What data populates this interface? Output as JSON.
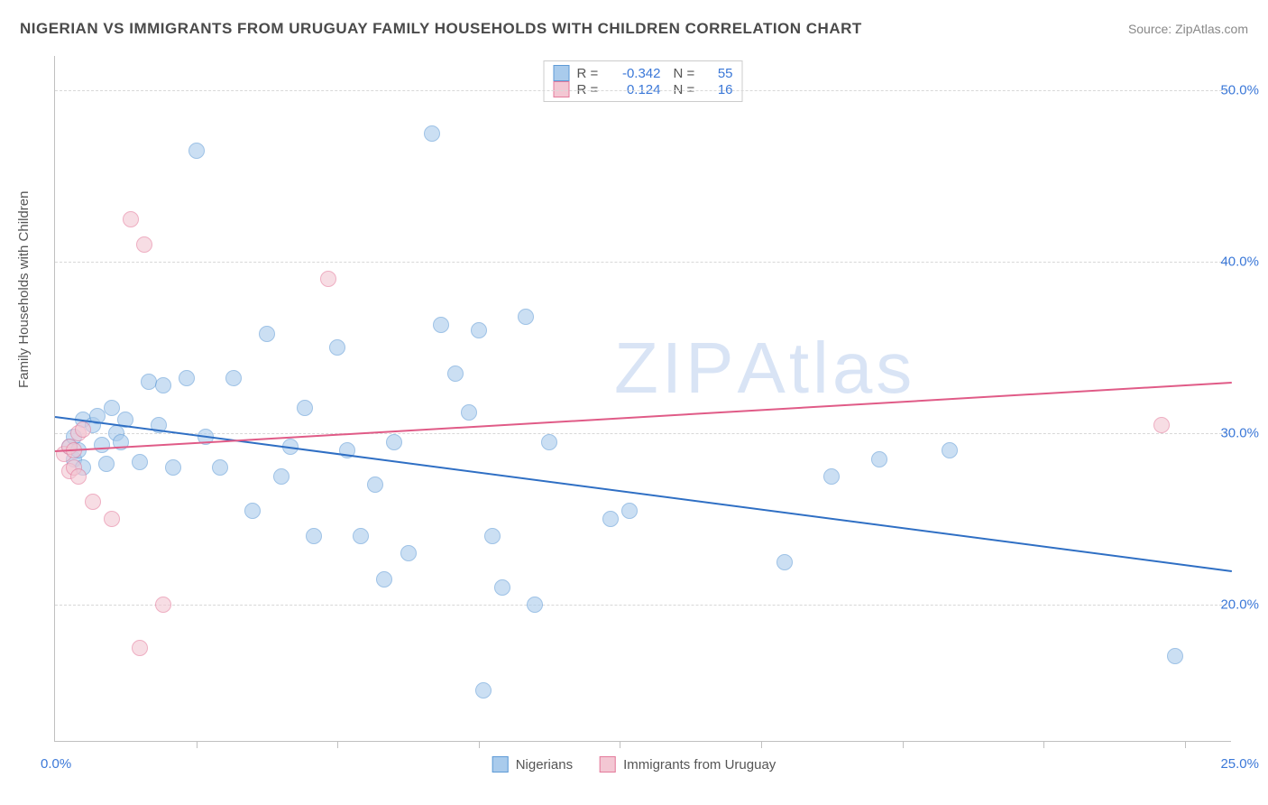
{
  "title": "NIGERIAN VS IMMIGRANTS FROM URUGUAY FAMILY HOUSEHOLDS WITH CHILDREN CORRELATION CHART",
  "source": "Source: ZipAtlas.com",
  "watermark": "ZIPAtlas",
  "y_axis_label": "Family Households with Children",
  "chart": {
    "type": "scatter",
    "xlim": [
      0,
      25
    ],
    "ylim": [
      12,
      52
    ],
    "y_ticks": [
      20,
      30,
      40,
      50
    ],
    "y_tick_labels": [
      "20.0%",
      "30.0%",
      "40.0%",
      "50.0%"
    ],
    "x_tick_positions": [
      3,
      6,
      9,
      12,
      15,
      18,
      21,
      24
    ],
    "x_start_label": "0.0%",
    "x_end_label": "25.0%",
    "background_color": "#ffffff",
    "grid_color": "#d8d8d8",
    "axis_color": "#c0c0c0",
    "marker_radius": 9,
    "marker_stroke_width": 1.5,
    "series": [
      {
        "name": "Nigerians",
        "fill_color": "#a9cbec",
        "stroke_color": "#5e9ad6",
        "fill_opacity": 0.6,
        "correlation_R": "-0.342",
        "N": "55",
        "trend": {
          "x1": 0,
          "y1": 31.0,
          "x2": 25,
          "y2": 22.0,
          "color": "#2f6fc4",
          "width": 2
        },
        "points": [
          [
            0.3,
            29.2
          ],
          [
            0.4,
            28.5
          ],
          [
            0.4,
            29.8
          ],
          [
            0.5,
            29.0
          ],
          [
            0.6,
            30.8
          ],
          [
            0.6,
            28.0
          ],
          [
            0.8,
            30.5
          ],
          [
            0.9,
            31.0
          ],
          [
            1.0,
            29.3
          ],
          [
            1.1,
            28.2
          ],
          [
            1.2,
            31.5
          ],
          [
            1.3,
            30.0
          ],
          [
            1.4,
            29.5
          ],
          [
            1.5,
            30.8
          ],
          [
            1.8,
            28.3
          ],
          [
            2.0,
            33.0
          ],
          [
            2.2,
            30.5
          ],
          [
            2.3,
            32.8
          ],
          [
            2.5,
            28.0
          ],
          [
            2.8,
            33.2
          ],
          [
            3.0,
            46.5
          ],
          [
            3.2,
            29.8
          ],
          [
            3.5,
            28.0
          ],
          [
            3.8,
            33.2
          ],
          [
            4.2,
            25.5
          ],
          [
            4.5,
            35.8
          ],
          [
            4.8,
            27.5
          ],
          [
            5.0,
            29.2
          ],
          [
            5.3,
            31.5
          ],
          [
            5.5,
            24.0
          ],
          [
            6.0,
            35.0
          ],
          [
            6.2,
            29.0
          ],
          [
            6.5,
            24.0
          ],
          [
            6.8,
            27.0
          ],
          [
            7.0,
            21.5
          ],
          [
            7.2,
            29.5
          ],
          [
            7.5,
            23.0
          ],
          [
            8.0,
            47.5
          ],
          [
            8.2,
            36.3
          ],
          [
            8.5,
            33.5
          ],
          [
            8.8,
            31.2
          ],
          [
            9.0,
            36.0
          ],
          [
            9.1,
            15.0
          ],
          [
            9.3,
            24.0
          ],
          [
            9.5,
            21.0
          ],
          [
            10.0,
            36.8
          ],
          [
            10.2,
            20.0
          ],
          [
            10.5,
            29.5
          ],
          [
            11.8,
            25.0
          ],
          [
            12.2,
            25.5
          ],
          [
            15.5,
            22.5
          ],
          [
            16.5,
            27.5
          ],
          [
            17.5,
            28.5
          ],
          [
            19.0,
            29.0
          ],
          [
            23.8,
            17.0
          ]
        ]
      },
      {
        "name": "Immigrants from Uruguay",
        "fill_color": "#f3c7d3",
        "stroke_color": "#e47a9b",
        "fill_opacity": 0.6,
        "correlation_R": "0.124",
        "N": "16",
        "trend": {
          "x1": 0,
          "y1": 29.0,
          "x2": 25,
          "y2": 33.0,
          "color": "#e05b87",
          "width": 2
        },
        "points": [
          [
            0.2,
            28.8
          ],
          [
            0.3,
            29.2
          ],
          [
            0.3,
            27.8
          ],
          [
            0.4,
            29.0
          ],
          [
            0.4,
            28.0
          ],
          [
            0.5,
            30.0
          ],
          [
            0.5,
            27.5
          ],
          [
            0.6,
            30.2
          ],
          [
            0.8,
            26.0
          ],
          [
            1.2,
            25.0
          ],
          [
            1.6,
            42.5
          ],
          [
            1.8,
            17.5
          ],
          [
            1.9,
            41.0
          ],
          [
            2.3,
            20.0
          ],
          [
            5.8,
            39.0
          ],
          [
            23.5,
            30.5
          ]
        ]
      }
    ]
  },
  "legend_bottom": [
    {
      "label": "Nigerians",
      "fill": "#a9cbec",
      "stroke": "#5e9ad6"
    },
    {
      "label": "Immigrants from Uruguay",
      "fill": "#f3c7d3",
      "stroke": "#e47a9b"
    }
  ]
}
